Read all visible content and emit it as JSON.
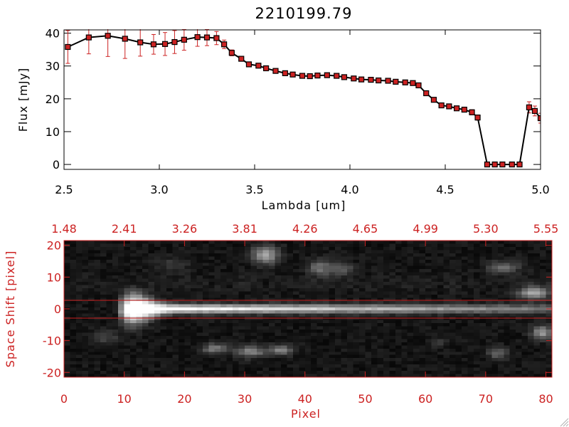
{
  "chart_data": [
    {
      "type": "line",
      "title": "2210199.79",
      "xlabel": "Lambda [um]",
      "ylabel": "Flux [mJy]",
      "xlim": [
        2.5,
        5.0
      ],
      "ylim": [
        -1.5,
        41
      ],
      "xticks": [
        {
          "value": 2.5,
          "label": "2.5"
        },
        {
          "value": 3.0,
          "label": "3.0"
        },
        {
          "value": 3.5,
          "label": "3.5"
        },
        {
          "value": 4.0,
          "label": "4.0"
        },
        {
          "value": 4.5,
          "label": "4.5"
        },
        {
          "value": 5.0,
          "label": "5.0"
        }
      ],
      "yticks": [
        {
          "value": 0,
          "label": "0"
        },
        {
          "value": 10,
          "label": "10"
        },
        {
          "value": 20,
          "label": "20"
        },
        {
          "value": 30,
          "label": "30"
        },
        {
          "value": 40,
          "label": "40"
        }
      ],
      "line_color": "#000000",
      "marker_color": "#cc2222",
      "errorbar_color": "#cc2222",
      "series": [
        {
          "name": "flux",
          "x": [
            2.52,
            2.63,
            2.73,
            2.82,
            2.9,
            2.97,
            3.03,
            3.08,
            3.13,
            3.2,
            3.25,
            3.3,
            3.34,
            3.38,
            3.43,
            3.47,
            3.52,
            3.56,
            3.61,
            3.66,
            3.7,
            3.75,
            3.79,
            3.83,
            3.88,
            3.93,
            3.97,
            4.02,
            4.06,
            4.11,
            4.15,
            4.2,
            4.24,
            4.29,
            4.33,
            4.36,
            4.4,
            4.44,
            4.48,
            4.52,
            4.56,
            4.6,
            4.64,
            4.67,
            4.72,
            4.76,
            4.8,
            4.85,
            4.89,
            4.94,
            4.97,
            5.0
          ],
          "y": [
            35.8,
            38.7,
            39.2,
            38.3,
            37.2,
            36.6,
            36.7,
            37.3,
            38.0,
            38.8,
            38.7,
            38.5,
            36.6,
            34.0,
            32.2,
            30.5,
            30.1,
            29.3,
            28.5,
            27.8,
            27.4,
            27.0,
            26.9,
            27.1,
            27.2,
            27.0,
            26.6,
            26.2,
            25.9,
            25.8,
            25.6,
            25.5,
            25.2,
            25.0,
            24.8,
            24.1,
            21.7,
            19.7,
            18.0,
            17.7,
            17.1,
            16.7,
            15.9,
            14.3,
            0.0,
            0.0,
            0.0,
            0.0,
            0.0,
            17.4,
            16.3,
            14.1
          ],
          "err": [
            5.0,
            5.0,
            6.3,
            6.0,
            4.2,
            3.0,
            3.5,
            3.5,
            3.2,
            2.8,
            2.5,
            2.0,
            1.3,
            0.9,
            0.6,
            0.5,
            0.5,
            0.5,
            0.5,
            0.5,
            0.5,
            0.5,
            0.5,
            0.5,
            0.5,
            0.5,
            0.5,
            0.5,
            0.5,
            0.5,
            0.5,
            0.5,
            0.5,
            0.5,
            0.5,
            0.5,
            0.6,
            0.7,
            0.7,
            0.7,
            0.7,
            0.7,
            0.8,
            0.8,
            0.4,
            0.4,
            0.4,
            0.4,
            0.4,
            1.7,
            1.5,
            1.5
          ]
        }
      ]
    },
    {
      "type": "heatmap",
      "xlabel": "Pixel",
      "ylabel": "Space Shift [pixel]",
      "xlim": [
        0,
        81
      ],
      "ylim": [
        -21.5,
        21.5
      ],
      "xticks": [
        {
          "value": 0,
          "label": "0"
        },
        {
          "value": 10,
          "label": "10"
        },
        {
          "value": 20,
          "label": "20"
        },
        {
          "value": 30,
          "label": "30"
        },
        {
          "value": 40,
          "label": "40"
        },
        {
          "value": 50,
          "label": "50"
        },
        {
          "value": 60,
          "label": "60"
        },
        {
          "value": 70,
          "label": "70"
        },
        {
          "value": 80,
          "label": "80"
        }
      ],
      "yticks": [
        {
          "value": -20,
          "label": "-20"
        },
        {
          "value": -10,
          "label": "-10"
        },
        {
          "value": 0,
          "label": "0"
        },
        {
          "value": 10,
          "label": "10"
        },
        {
          "value": 20,
          "label": "20"
        }
      ],
      "top_axis_label": "",
      "top_ticks": [
        {
          "value": 0,
          "label": "1.48"
        },
        {
          "value": 10,
          "label": "2.41"
        },
        {
          "value": 20,
          "label": "3.26"
        },
        {
          "value": 30,
          "label": "3.81"
        },
        {
          "value": 40,
          "label": "4.26"
        },
        {
          "value": 50,
          "label": "4.65"
        },
        {
          "value": 60,
          "label": "4.99"
        },
        {
          "value": 70,
          "label": "5.30"
        },
        {
          "value": 80,
          "label": "5.55"
        }
      ],
      "aperture_lines": [
        2.7,
        -2.9
      ],
      "axis_color": "#cc2222",
      "trace": {
        "center_y": 0,
        "start_x": 9.5,
        "end_x": 81,
        "peak_x": 11
      },
      "blobs": [
        {
          "x": 33.5,
          "y": 17.0,
          "sx": 2.2,
          "sy": 2.8,
          "amp": 0.55
        },
        {
          "x": 42.5,
          "y": 13.0,
          "sx": 1.8,
          "sy": 2.5,
          "amp": 0.35
        },
        {
          "x": 46.0,
          "y": 12.5,
          "sx": 2.0,
          "sy": 2.2,
          "amp": 0.3
        },
        {
          "x": 73.0,
          "y": 13.0,
          "sx": 2.5,
          "sy": 2.0,
          "amp": 0.35
        },
        {
          "x": 78.0,
          "y": 5.0,
          "sx": 2.5,
          "sy": 2.0,
          "amp": 0.55
        },
        {
          "x": 79.5,
          "y": -7.5,
          "sx": 1.8,
          "sy": 2.2,
          "amp": 0.5
        },
        {
          "x": 25.0,
          "y": -12.5,
          "sx": 2.0,
          "sy": 1.6,
          "amp": 0.4
        },
        {
          "x": 31.0,
          "y": -13.5,
          "sx": 2.5,
          "sy": 1.8,
          "amp": 0.45
        },
        {
          "x": 36.0,
          "y": -13.0,
          "sx": 2.0,
          "sy": 1.6,
          "amp": 0.4
        },
        {
          "x": 72.0,
          "y": -14.0,
          "sx": 1.6,
          "sy": 2.0,
          "amp": 0.3
        },
        {
          "x": 7.0,
          "y": -9.0,
          "sx": 2.2,
          "sy": 2.5,
          "amp": 0.18
        },
        {
          "x": 62.0,
          "y": -10.5,
          "sx": 1.5,
          "sy": 1.2,
          "amp": 0.15
        },
        {
          "x": 18.0,
          "y": 14.0,
          "sx": 3.0,
          "sy": 2.5,
          "amp": 0.12
        }
      ]
    }
  ]
}
